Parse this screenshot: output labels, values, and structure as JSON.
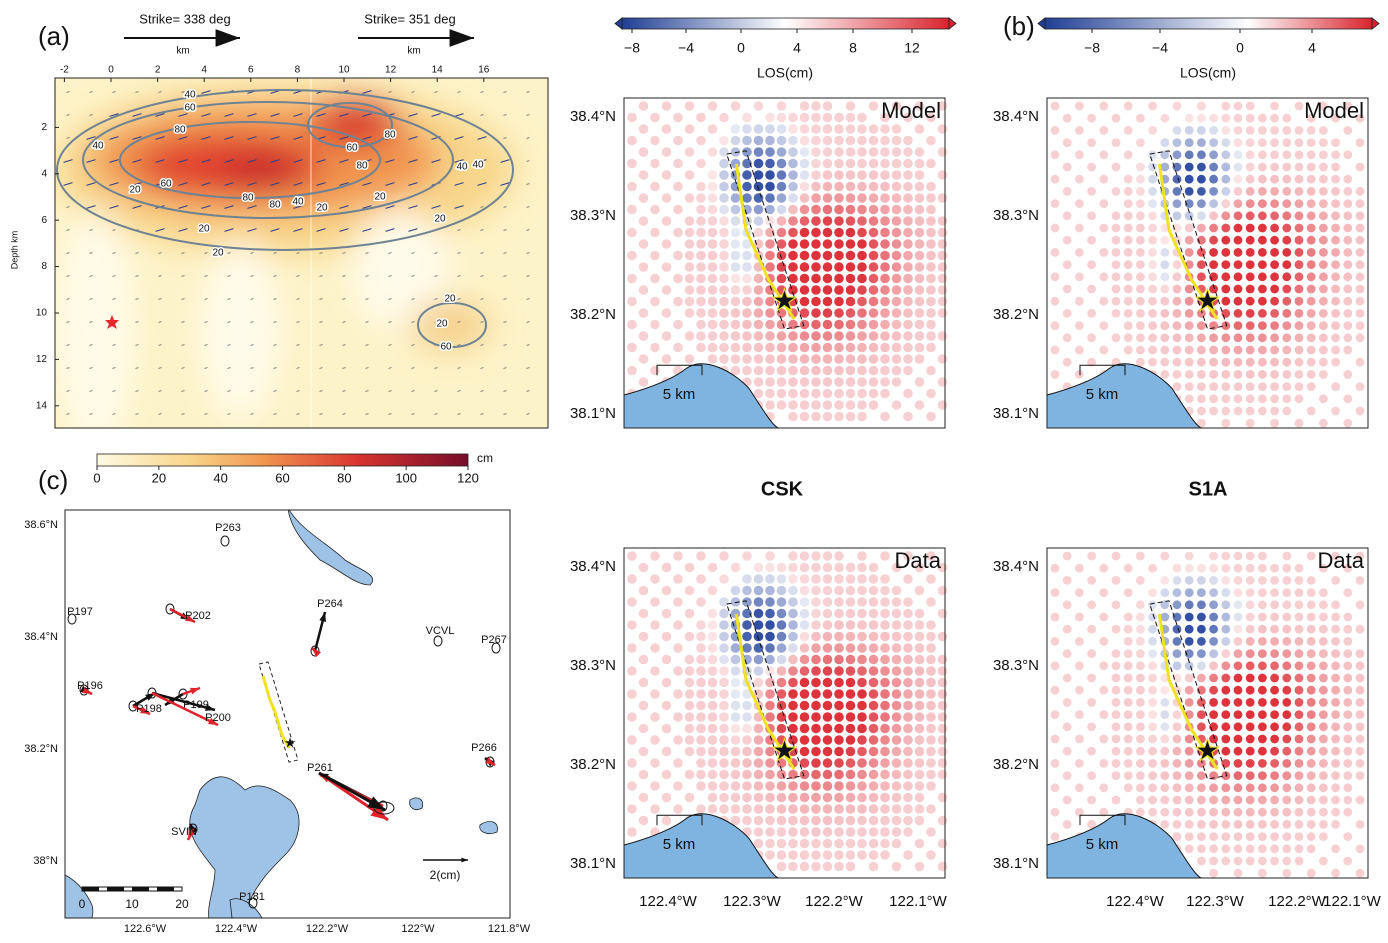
{
  "panel_a": {
    "label": "(a)",
    "strikes": [
      "Strike= 338 deg",
      "Strike= 351 deg"
    ],
    "strike_units": [
      "km",
      "km"
    ],
    "xticks": [
      -2,
      0,
      2,
      4,
      6,
      8,
      10,
      12,
      14,
      16
    ],
    "yticks": [
      2,
      4,
      6,
      8,
      10,
      12,
      14
    ],
    "ylabel": "Depth km",
    "contour_labels": [
      "40",
      "60",
      "80",
      "40",
      "20",
      "60",
      "80",
      "80",
      "40",
      "20",
      "80",
      "60",
      "80",
      "40",
      "20",
      "40",
      "20",
      "20",
      "20",
      "20",
      "20",
      "60"
    ],
    "colorbar": {
      "ticks": [
        0,
        20,
        40,
        60,
        80,
        100,
        120
      ],
      "unit": "cm"
    }
  },
  "panel_b": {
    "label": "(b)"
  },
  "panel_c": {
    "label": "(c)",
    "lat_ticks": [
      "38.6°N",
      "38.4°N",
      "38.2°N",
      "38°N"
    ],
    "lon_ticks": [
      "122.6°W",
      "122.4°W",
      "122.2°W",
      "122°W",
      "121.8°W"
    ],
    "stations": [
      "P263",
      "P197",
      "P202",
      "P264",
      "VCVL",
      "P267",
      "P196",
      "P198",
      "P199",
      "P200",
      "P266",
      "P261",
      "SVIN",
      "P181"
    ],
    "scalebar_ticks": [
      "0",
      "10",
      "20"
    ],
    "vector_scale": "2(cm)"
  },
  "insar": [
    {
      "title": "CSK",
      "colorbar": {
        "ticks": [
          "−8",
          "−4",
          "0",
          "4",
          "8",
          "12"
        ],
        "label": "LOS(cm)"
      },
      "lat_ticks": [
        "38.4°N",
        "38.3°N",
        "38.2°N",
        "38.1°N"
      ],
      "lon_ticks": [
        "122.4°W",
        "122.3°W",
        "122.2°W",
        "122.1°W"
      ],
      "panels": [
        "Model",
        "Data"
      ],
      "scale": "5 km"
    },
    {
      "title": "S1A",
      "colorbar": {
        "ticks": [
          "−8",
          "−4",
          "0",
          "4"
        ],
        "label": "LOS(cm)"
      },
      "lat_ticks": [
        "38.4°N",
        "38.3°N",
        "38.2°N",
        "38.1°N"
      ],
      "lon_ticks": [
        "122.4°W",
        "122.3°W",
        "122.2°W",
        "122.1°W"
      ],
      "panels": [
        "Model",
        "Data"
      ],
      "scale": "5 km"
    }
  ]
}
